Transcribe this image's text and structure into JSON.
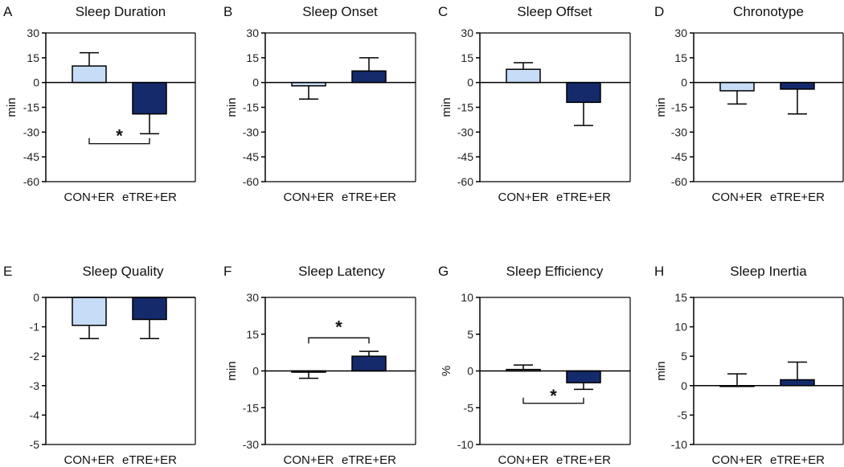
{
  "colors": {
    "con": "#c6dcf7",
    "etre": "#142a6b",
    "axis": "#000000"
  },
  "chart_data": [
    {
      "letter": "A",
      "title": "Sleep Duration",
      "type": "bar",
      "ylabel": "min",
      "categories": [
        "CON+ER",
        "eTRE+ER"
      ],
      "values": [
        10,
        -19
      ],
      "errors": [
        8,
        12
      ],
      "ylim": [
        -60,
        30
      ],
      "yticks": [
        "30",
        "15",
        "0",
        "-15",
        "-30",
        "-45",
        "-60"
      ],
      "tick_values": [
        30,
        15,
        0,
        -15,
        -30,
        -45,
        -60
      ],
      "significance": {
        "label": "*",
        "y": -37
      }
    },
    {
      "letter": "B",
      "title": "Sleep Onset",
      "type": "bar",
      "ylabel": "min",
      "categories": [
        "CON+ER",
        "eTRE+ER"
      ],
      "values": [
        -2,
        7
      ],
      "errors": [
        8,
        8
      ],
      "ylim": [
        -60,
        30
      ],
      "yticks": [
        "30",
        "15",
        "0",
        "-15",
        "-30",
        "-45",
        "-60"
      ],
      "tick_values": [
        30,
        15,
        0,
        -15,
        -30,
        -45,
        -60
      ],
      "significance": null
    },
    {
      "letter": "C",
      "title": "Sleep Offset",
      "type": "bar",
      "ylabel": "min",
      "categories": [
        "CON+ER",
        "eTRE+ER"
      ],
      "values": [
        8,
        -12
      ],
      "errors": [
        4,
        14
      ],
      "ylim": [
        -60,
        30
      ],
      "yticks": [
        "30",
        "15",
        "0",
        "-15",
        "-30",
        "-45",
        "-60"
      ],
      "tick_values": [
        30,
        15,
        0,
        -15,
        -30,
        -45,
        -60
      ],
      "significance": null
    },
    {
      "letter": "D",
      "title": "Chronotype",
      "type": "bar",
      "ylabel": "min",
      "categories": [
        "CON+ER",
        "eTRE+ER"
      ],
      "values": [
        -5,
        -4
      ],
      "errors": [
        8,
        15
      ],
      "ylim": [
        -60,
        30
      ],
      "yticks": [
        "30",
        "15",
        "0",
        "-15",
        "-30",
        "-45",
        "-60"
      ],
      "tick_values": [
        30,
        15,
        0,
        -15,
        -30,
        -45,
        -60
      ],
      "significance": null
    },
    {
      "letter": "E",
      "title": "Sleep Quality",
      "type": "bar",
      "ylabel": "",
      "categories": [
        "CON+ER",
        "eTRE+ER"
      ],
      "values": [
        -0.95,
        -0.75
      ],
      "errors": [
        0.45,
        0.65
      ],
      "ylim": [
        -5,
        0
      ],
      "yticks": [
        "0",
        "-1",
        "-2",
        "-3",
        "-4",
        "-5"
      ],
      "tick_values": [
        0,
        -1,
        -2,
        -3,
        -4,
        -5
      ],
      "significance": null
    },
    {
      "letter": "F",
      "title": "Sleep Latency",
      "type": "bar",
      "ylabel": "min",
      "categories": [
        "CON+ER",
        "eTRE+ER"
      ],
      "values": [
        -0.5,
        6
      ],
      "errors": [
        2.5,
        2
      ],
      "ylim": [
        -30,
        30
      ],
      "yticks": [
        "30",
        "15",
        "0",
        "-15",
        "-30"
      ],
      "tick_values": [
        30,
        15,
        0,
        -15,
        -30
      ],
      "significance": {
        "label": "*",
        "y": 13.5
      }
    },
    {
      "letter": "G",
      "title": "Sleep Efficiency",
      "type": "bar",
      "ylabel": "%",
      "categories": [
        "CON+ER",
        "eTRE+ER"
      ],
      "values": [
        0.2,
        -1.6
      ],
      "errors": [
        0.6,
        0.9
      ],
      "ylim": [
        -10,
        10
      ],
      "yticks": [
        "10",
        "5",
        "0",
        "-5",
        "-10"
      ],
      "tick_values": [
        10,
        5,
        0,
        -5,
        -10
      ],
      "significance": {
        "label": "*",
        "y": -4.4
      }
    },
    {
      "letter": "H",
      "title": "Sleep Inertia",
      "type": "bar",
      "ylabel": "min",
      "categories": [
        "CON+ER",
        "eTRE+ER"
      ],
      "values": [
        0,
        1
      ],
      "errors": [
        2,
        3
      ],
      "ylim": [
        -10,
        15
      ],
      "yticks": [
        "15",
        "10",
        "5",
        "0",
        "-5",
        "-10"
      ],
      "tick_values": [
        15,
        10,
        5,
        0,
        -5,
        -10
      ],
      "significance": null
    }
  ]
}
